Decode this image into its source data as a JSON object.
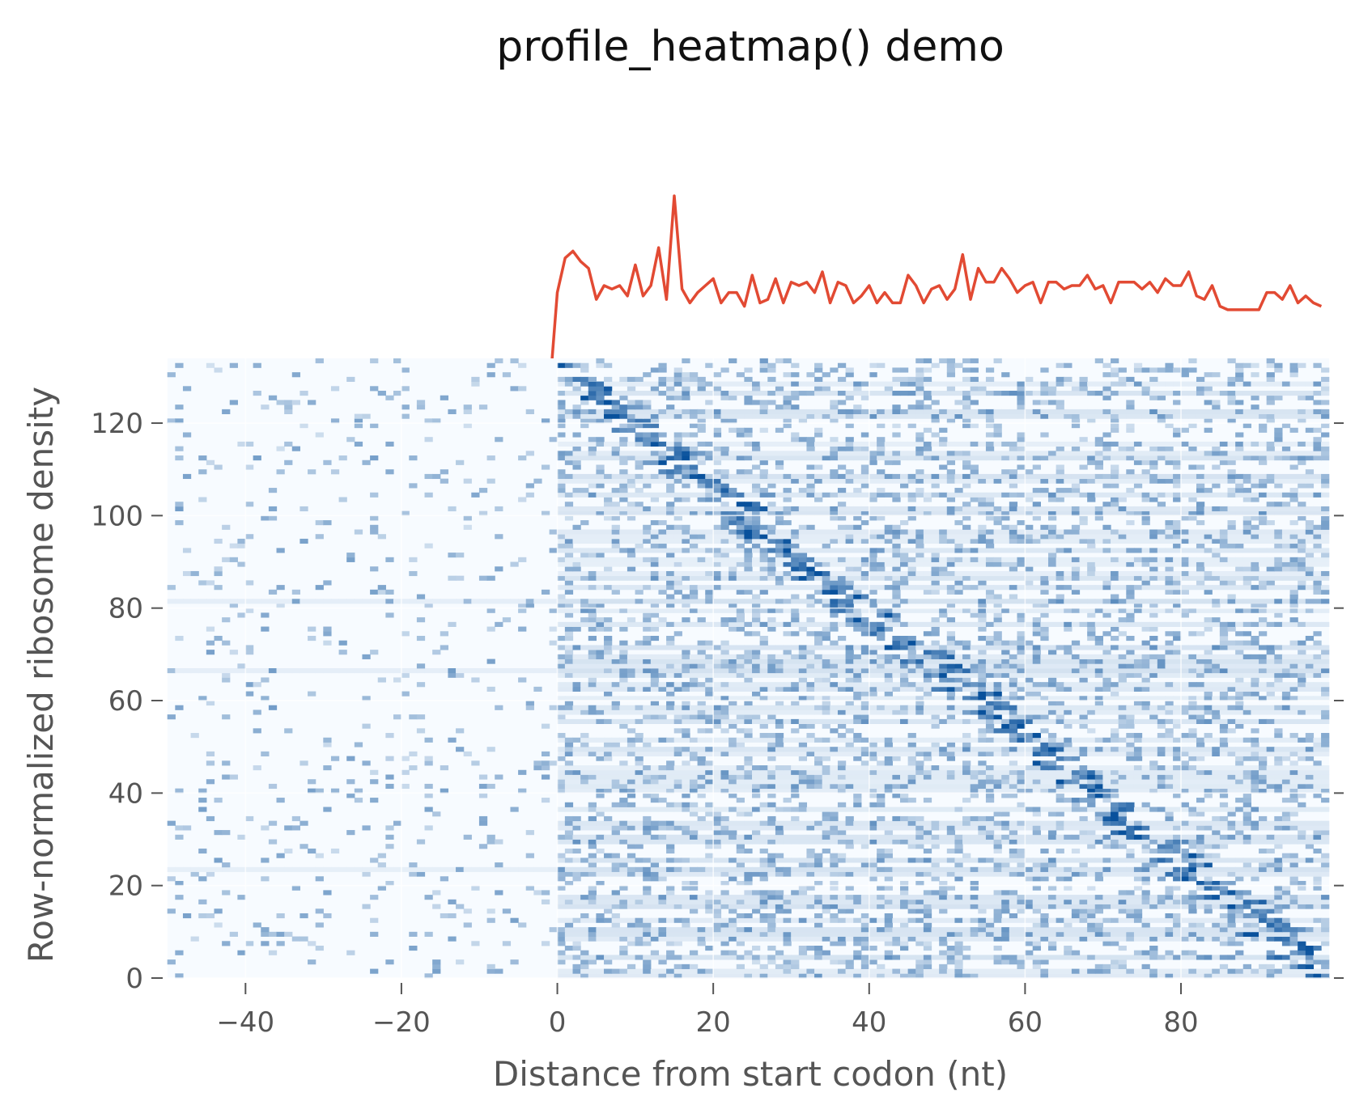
{
  "chart_data": {
    "type": "heatmap",
    "title": "profile_heatmap() demo",
    "xlabel": "Distance from start codon (nt)",
    "ylabel": "Row-normalized ribosome density",
    "xlim": [
      -50,
      99
    ],
    "ylim": [
      0,
      134
    ],
    "x_ticks": [
      -40,
      -20,
      0,
      20,
      40,
      60,
      80
    ],
    "x_tick_labels": [
      "−40",
      "−20",
      "0",
      "20",
      "40",
      "60",
      "80"
    ],
    "y_ticks": [
      0,
      20,
      40,
      60,
      80,
      100,
      120
    ],
    "y_tick_labels": [
      "0",
      "20",
      "40",
      "60",
      "80",
      "100",
      "120"
    ],
    "grid": true,
    "colormap": "Blues",
    "colors": {
      "profile_line": "#e24a33",
      "heatmap_low": "#f7fbff",
      "heatmap_high": "#08519c"
    },
    "profile_line": {
      "x": [
        0,
        1,
        2,
        3,
        4,
        5,
        6,
        7,
        8,
        9,
        10,
        11,
        12,
        13,
        14,
        15,
        16,
        17,
        18,
        19,
        20,
        21,
        22,
        23,
        24,
        25,
        26,
        27,
        28,
        29,
        30,
        31,
        32,
        33,
        34,
        35,
        36,
        37,
        38,
        39,
        40,
        41,
        42,
        43,
        44,
        45,
        46,
        47,
        48,
        49,
        50,
        51,
        52,
        53,
        54,
        55,
        56,
        57,
        58,
        59,
        60,
        61,
        62,
        63,
        64,
        65,
        66,
        67,
        68,
        69,
        70,
        71,
        72,
        73,
        74,
        75,
        76,
        77,
        78,
        79,
        80,
        81,
        82,
        83,
        84,
        85,
        86,
        87,
        88,
        89,
        90,
        91,
        92,
        93,
        94,
        95,
        96,
        97,
        98
      ],
      "values": [
        0.43,
        0.53,
        0.55,
        0.52,
        0.5,
        0.41,
        0.45,
        0.44,
        0.45,
        0.42,
        0.51,
        0.42,
        0.45,
        0.56,
        0.41,
        0.71,
        0.44,
        0.4,
        0.43,
        0.45,
        0.47,
        0.4,
        0.43,
        0.43,
        0.39,
        0.48,
        0.4,
        0.41,
        0.47,
        0.4,
        0.46,
        0.45,
        0.46,
        0.43,
        0.49,
        0.4,
        0.46,
        0.45,
        0.4,
        0.42,
        0.45,
        0.4,
        0.43,
        0.4,
        0.4,
        0.48,
        0.45,
        0.4,
        0.44,
        0.45,
        0.41,
        0.44,
        0.54,
        0.41,
        0.5,
        0.46,
        0.46,
        0.5,
        0.47,
        0.43,
        0.45,
        0.46,
        0.4,
        0.46,
        0.46,
        0.44,
        0.45,
        0.45,
        0.48,
        0.44,
        0.45,
        0.4,
        0.46,
        0.46,
        0.46,
        0.44,
        0.46,
        0.43,
        0.47,
        0.45,
        0.45,
        0.49,
        0.42,
        0.41,
        0.45,
        0.39,
        0.38,
        0.38,
        0.38,
        0.38,
        0.38,
        0.43,
        0.43,
        0.41,
        0.45,
        0.4,
        0.42,
        0.4,
        0.39
      ]
    }
  }
}
